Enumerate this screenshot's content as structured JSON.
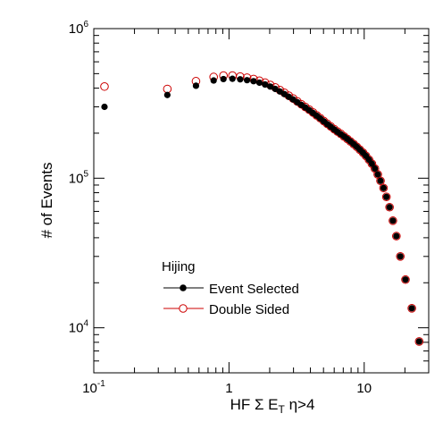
{
  "chart_data": {
    "type": "scatter",
    "xlabel": "HF Σ E_T η>4",
    "xlabel_parts": {
      "main": "HF Σ E",
      "sub": "T",
      "tail": " η>4"
    },
    "ylabel": "# of Events",
    "xscale": "log",
    "yscale": "log",
    "xlim": [
      0.1,
      30
    ],
    "ylim": [
      5000,
      1000000
    ],
    "grid": false,
    "x_ticks": [
      {
        "value": 0.1,
        "base": "10",
        "exp": "-1"
      },
      {
        "value": 1,
        "text": "1"
      },
      {
        "value": 10,
        "text": "10"
      }
    ],
    "y_ticks": [
      {
        "value": 10000,
        "base": "10",
        "exp": "4"
      },
      {
        "value": 100000,
        "base": "10",
        "exp": "5"
      },
      {
        "value": 1000000,
        "base": "10",
        "exp": "6"
      }
    ],
    "legend": {
      "title": "Hijing",
      "placement": "bottom-left",
      "entries": [
        {
          "name": "Event Selected",
          "marker": "filled-circle",
          "line_color": "#000000",
          "marker_color": "#000000"
        },
        {
          "name": "Double Sided",
          "marker": "open-circle",
          "line_color": "#cc0000",
          "marker_color": "#cc0000"
        }
      ]
    },
    "series": [
      {
        "name": "Event Selected",
        "color": "#000000",
        "marker": "filled-circle",
        "points": [
          [
            0.12,
            300000
          ],
          [
            0.35,
            360000
          ],
          [
            0.57,
            415000
          ],
          [
            0.77,
            450000
          ],
          [
            0.91,
            460000
          ],
          [
            1.06,
            462000
          ],
          [
            1.21,
            458000
          ],
          [
            1.36,
            452000
          ],
          [
            1.52,
            445000
          ],
          [
            1.68,
            435000
          ],
          [
            1.85,
            423000
          ],
          [
            2.02,
            410000
          ],
          [
            2.2,
            395000
          ],
          [
            2.38,
            380000
          ],
          [
            2.57,
            365000
          ],
          [
            2.77,
            350000
          ],
          [
            2.98,
            336000
          ],
          [
            3.2,
            322000
          ],
          [
            3.43,
            309000
          ],
          [
            3.67,
            297000
          ],
          [
            3.92,
            285000
          ],
          [
            4.18,
            273000
          ],
          [
            4.45,
            262000
          ],
          [
            4.73,
            251000
          ],
          [
            5.02,
            240000
          ],
          [
            5.33,
            230000
          ],
          [
            5.65,
            221000
          ],
          [
            5.99,
            212000
          ],
          [
            6.34,
            204000
          ],
          [
            6.71,
            197000
          ],
          [
            7.1,
            190000
          ],
          [
            7.5,
            183000
          ],
          [
            7.92,
            176000
          ],
          [
            8.36,
            169000
          ],
          [
            8.82,
            162000
          ],
          [
            9.3,
            155000
          ],
          [
            9.8,
            148000
          ],
          [
            10.3,
            141000
          ],
          [
            10.85,
            133000
          ],
          [
            11.4,
            125000
          ],
          [
            12.0,
            116000
          ],
          [
            12.6,
            106000
          ],
          [
            13.2,
            96000
          ],
          [
            13.9,
            86000
          ],
          [
            14.6,
            75000
          ],
          [
            15.4,
            64000
          ],
          [
            16.3,
            52000
          ],
          [
            17.3,
            41000
          ],
          [
            18.5,
            30000
          ],
          [
            20.2,
            21000
          ],
          [
            22.5,
            13500
          ],
          [
            25.5,
            8100
          ]
        ]
      },
      {
        "name": "Double Sided",
        "color": "#cc0000",
        "marker": "open-circle",
        "points": [
          [
            0.12,
            410000
          ],
          [
            0.35,
            395000
          ],
          [
            0.57,
            445000
          ],
          [
            0.77,
            475000
          ],
          [
            0.91,
            485000
          ],
          [
            1.06,
            485000
          ],
          [
            1.21,
            478000
          ],
          [
            1.36,
            470000
          ],
          [
            1.52,
            460000
          ],
          [
            1.68,
            448000
          ],
          [
            1.85,
            435000
          ],
          [
            2.02,
            420000
          ],
          [
            2.2,
            404000
          ],
          [
            2.38,
            388000
          ],
          [
            2.57,
            372000
          ],
          [
            2.77,
            356000
          ],
          [
            2.98,
            341000
          ],
          [
            3.2,
            326000
          ],
          [
            3.43,
            312000
          ],
          [
            3.67,
            299000
          ],
          [
            3.92,
            287000
          ],
          [
            4.18,
            275000
          ],
          [
            4.45,
            263000
          ],
          [
            4.73,
            252000
          ],
          [
            5.02,
            241000
          ],
          [
            5.33,
            231000
          ],
          [
            5.65,
            222000
          ],
          [
            5.99,
            213000
          ],
          [
            6.34,
            205000
          ],
          [
            6.71,
            198000
          ],
          [
            7.1,
            190000
          ],
          [
            7.5,
            183000
          ],
          [
            7.92,
            176000
          ],
          [
            8.36,
            169000
          ],
          [
            8.82,
            162000
          ],
          [
            9.3,
            155000
          ],
          [
            9.8,
            148000
          ],
          [
            10.3,
            141000
          ],
          [
            10.85,
            133000
          ],
          [
            11.4,
            125000
          ],
          [
            12.0,
            116000
          ],
          [
            12.6,
            106000
          ],
          [
            13.2,
            96000
          ],
          [
            13.9,
            86000
          ],
          [
            14.6,
            75000
          ],
          [
            15.4,
            64000
          ],
          [
            16.3,
            52000
          ],
          [
            17.3,
            41000
          ],
          [
            18.5,
            30000
          ],
          [
            20.2,
            21000
          ],
          [
            22.5,
            13500
          ],
          [
            25.5,
            8100
          ]
        ]
      }
    ]
  }
}
